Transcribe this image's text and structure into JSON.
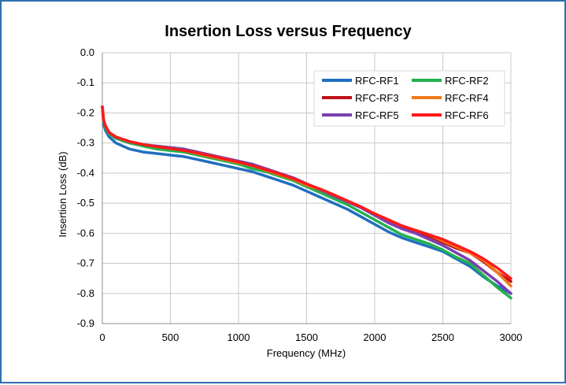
{
  "chart_data": {
    "type": "line",
    "title": "Insertion Loss versus Frequency",
    "xlabel": "Frequency (MHz)",
    "ylabel": "Insertion Loss (dB)",
    "xlim": [
      0,
      3000
    ],
    "ylim": [
      -0.9,
      0.0
    ],
    "xticks": [
      0,
      500,
      1000,
      1500,
      2000,
      2500,
      3000
    ],
    "xtick_labels": [
      "0",
      "500",
      "1000",
      "1500",
      "2000",
      "2500",
      "3000"
    ],
    "yticks": [
      0.0,
      -0.1,
      -0.2,
      -0.3,
      -0.4,
      -0.5,
      -0.6,
      -0.7,
      -0.8,
      -0.9
    ],
    "ytick_labels": [
      "0.0",
      "-0.1",
      "-0.2",
      "-0.3",
      "-0.4",
      "-0.5",
      "-0.6",
      "-0.7",
      "-0.8",
      "-0.9"
    ],
    "grid": true,
    "legend_position": "top-right",
    "x": [
      0,
      10,
      25,
      50,
      100,
      200,
      300,
      400,
      500,
      600,
      700,
      800,
      900,
      1000,
      1100,
      1200,
      1300,
      1400,
      1500,
      1600,
      1700,
      1800,
      1900,
      2000,
      2100,
      2200,
      2300,
      2400,
      2500,
      2600,
      2700,
      2800,
      2900,
      3000
    ],
    "series": [
      {
        "name": "RFC-RF1",
        "color": "#1f6fbf",
        "values": [
          -0.18,
          -0.24,
          -0.26,
          -0.28,
          -0.3,
          -0.32,
          -0.33,
          -0.335,
          -0.34,
          -0.345,
          -0.355,
          -0.365,
          -0.375,
          -0.385,
          -0.395,
          -0.41,
          -0.425,
          -0.44,
          -0.46,
          -0.48,
          -0.5,
          -0.52,
          -0.545,
          -0.57,
          -0.595,
          -0.615,
          -0.63,
          -0.645,
          -0.66,
          -0.685,
          -0.71,
          -0.745,
          -0.775,
          -0.8
        ]
      },
      {
        "name": "RFC-RF2",
        "color": "#22b14c",
        "values": [
          -0.18,
          -0.23,
          -0.25,
          -0.27,
          -0.285,
          -0.3,
          -0.31,
          -0.32,
          -0.325,
          -0.33,
          -0.34,
          -0.35,
          -0.36,
          -0.37,
          -0.385,
          -0.395,
          -0.41,
          -0.425,
          -0.445,
          -0.465,
          -0.485,
          -0.505,
          -0.53,
          -0.555,
          -0.58,
          -0.605,
          -0.62,
          -0.635,
          -0.655,
          -0.68,
          -0.7,
          -0.74,
          -0.78,
          -0.815
        ]
      },
      {
        "name": "RFC-RF3",
        "color": "#c0111a",
        "values": [
          -0.18,
          -0.225,
          -0.245,
          -0.265,
          -0.28,
          -0.295,
          -0.305,
          -0.312,
          -0.318,
          -0.325,
          -0.335,
          -0.345,
          -0.355,
          -0.365,
          -0.375,
          -0.39,
          -0.405,
          -0.42,
          -0.44,
          -0.455,
          -0.475,
          -0.495,
          -0.515,
          -0.54,
          -0.56,
          -0.58,
          -0.595,
          -0.61,
          -0.63,
          -0.65,
          -0.665,
          -0.695,
          -0.73,
          -0.76
        ]
      },
      {
        "name": "RFC-RF4",
        "color": "#f07a1a",
        "values": [
          -0.18,
          -0.225,
          -0.245,
          -0.265,
          -0.28,
          -0.295,
          -0.305,
          -0.312,
          -0.318,
          -0.325,
          -0.335,
          -0.345,
          -0.355,
          -0.365,
          -0.375,
          -0.39,
          -0.405,
          -0.42,
          -0.44,
          -0.455,
          -0.475,
          -0.495,
          -0.515,
          -0.535,
          -0.555,
          -0.575,
          -0.59,
          -0.605,
          -0.625,
          -0.645,
          -0.665,
          -0.69,
          -0.73,
          -0.775
        ]
      },
      {
        "name": "RFC-RF5",
        "color": "#7a3fb0",
        "values": [
          -0.18,
          -0.225,
          -0.245,
          -0.265,
          -0.28,
          -0.295,
          -0.305,
          -0.31,
          -0.315,
          -0.32,
          -0.33,
          -0.34,
          -0.35,
          -0.36,
          -0.37,
          -0.385,
          -0.4,
          -0.415,
          -0.435,
          -0.455,
          -0.475,
          -0.495,
          -0.515,
          -0.54,
          -0.565,
          -0.585,
          -0.6,
          -0.62,
          -0.64,
          -0.665,
          -0.69,
          -0.725,
          -0.76,
          -0.8
        ]
      },
      {
        "name": "RFC-RF6",
        "color": "#ff1a1a",
        "values": [
          -0.18,
          -0.225,
          -0.245,
          -0.265,
          -0.28,
          -0.295,
          -0.305,
          -0.312,
          -0.318,
          -0.325,
          -0.333,
          -0.343,
          -0.353,
          -0.363,
          -0.375,
          -0.388,
          -0.402,
          -0.418,
          -0.436,
          -0.453,
          -0.472,
          -0.492,
          -0.512,
          -0.535,
          -0.555,
          -0.575,
          -0.59,
          -0.605,
          -0.62,
          -0.64,
          -0.66,
          -0.685,
          -0.715,
          -0.75
        ]
      }
    ]
  }
}
